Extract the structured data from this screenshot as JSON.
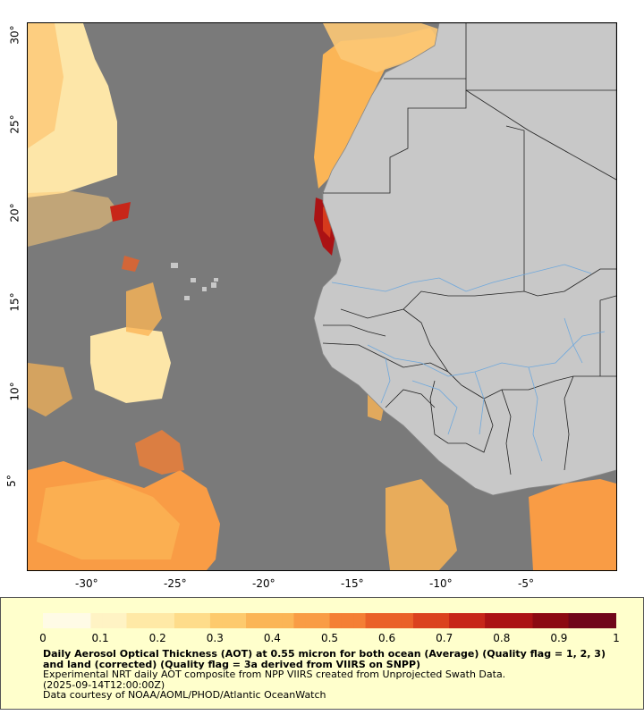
{
  "map": {
    "x_axis_labels": [
      "-30°",
      "-25°",
      "-20°",
      "-15°",
      "-10°",
      "-5°"
    ],
    "y_axis_labels": [
      "30°",
      "25°",
      "20°",
      "15°",
      "10°",
      "5°"
    ],
    "colors": {
      "ocean_no_data": "#7a7a7a",
      "land": "#c8c8c8",
      "borders": "#222222",
      "rivers": "#6fa8dc"
    }
  },
  "legend": {
    "tick_labels": [
      "0",
      "0.1",
      "0.2",
      "0.3",
      "0.4",
      "0.5",
      "0.6",
      "0.7",
      "0.8",
      "0.9",
      "1"
    ],
    "title": "Daily Aerosol Optical Thickness (AOT) at 0.55 micron for both ocean (Average) (Quality flag = 1, 2, 3) and land (corrected) (Quality flag = 3a derived from VIIRS on SNPP)",
    "line1": "Experimental NRT daily AOT composite from NPP VIIRS created from Unprojected Swath Data.",
    "line2": "(2025-09-14T12:00:00Z)",
    "line3": "Data courtesy of NOAA/AOML/PHOD/Atlantic OceanWatch",
    "colormap": [
      "#fffbe6",
      "#fff3c4",
      "#ffe9a6",
      "#fedc8a",
      "#fdca6d",
      "#fbb556",
      "#f99c45",
      "#f47f35",
      "#ea6128",
      "#db421e",
      "#c72619",
      "#ab1214",
      "#8c0a12",
      "#70061a"
    ]
  }
}
